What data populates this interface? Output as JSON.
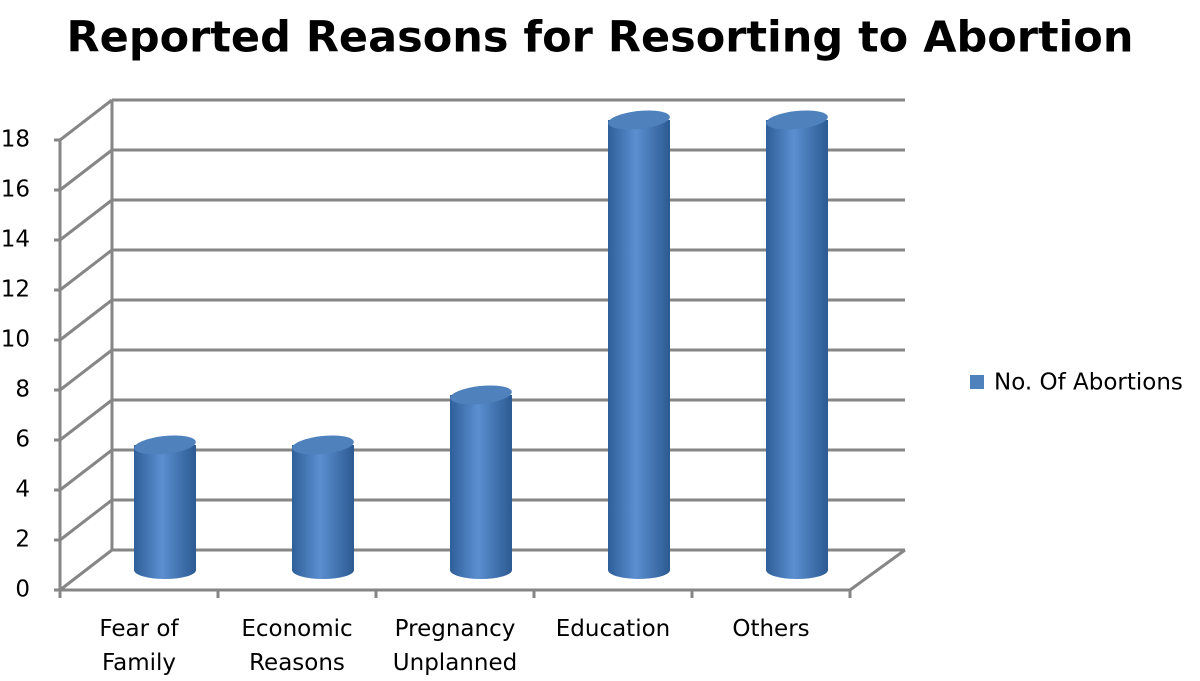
{
  "chart_data": {
    "type": "bar",
    "title": "Reported Reasons for Resorting to Abortion",
    "categories": [
      "Fear of Family",
      "Economic Reasons",
      "Pregnancy Unplanned",
      "Education",
      "Others"
    ],
    "series": [
      {
        "name": "No. Of Abortions",
        "color": "#4f81bd",
        "values": [
          5,
          5,
          7,
          18,
          18
        ]
      }
    ],
    "ylim": [
      0,
      18
    ],
    "yticks": [
      0,
      2,
      4,
      6,
      8,
      10,
      12,
      14,
      16,
      18
    ],
    "grid": true,
    "legend": "right"
  }
}
